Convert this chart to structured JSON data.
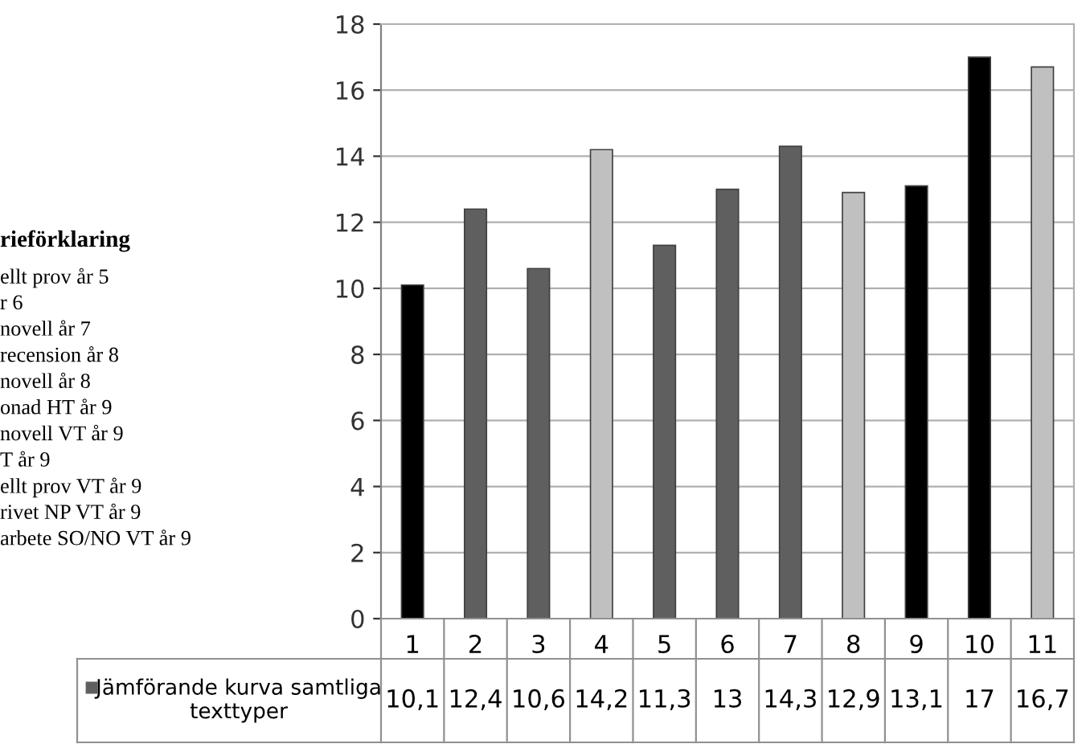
{
  "chart_data": {
    "type": "bar",
    "categories": [
      "1",
      "2",
      "3",
      "4",
      "5",
      "6",
      "7",
      "8",
      "9",
      "10",
      "11"
    ],
    "series": [
      {
        "name": "Jämförande kurva samtliga texttyper",
        "values": [
          10.1,
          12.4,
          10.6,
          14.2,
          11.3,
          13,
          14.3,
          12.9,
          13.1,
          17,
          16.7
        ],
        "colors": [
          "#000000",
          "#5f5f5f",
          "#5f5f5f",
          "#c0c0c0",
          "#5f5f5f",
          "#5f5f5f",
          "#5f5f5f",
          "#c0c0c0",
          "#000000",
          "#000000",
          "#c0c0c0"
        ],
        "value_labels": [
          "10,1",
          "12,4",
          "10,6",
          "14,2",
          "11,3",
          "13",
          "14,3",
          "12,9",
          "13,1",
          "17",
          "16,7"
        ]
      }
    ],
    "ylim": [
      0,
      18
    ],
    "yticks": [
      0,
      2,
      4,
      6,
      8,
      10,
      12,
      14,
      16,
      18
    ],
    "grid": "y",
    "legend": "bottom",
    "annotations": [
      "rieförklaring",
      "ellt prov år 5",
      "r 6",
      "novell år 7",
      "recension år 8",
      "novell år 8",
      "onad HT år 9",
      "novell VT år 9",
      "T år 9",
      "ellt prov VT år 9",
      "rivet NP VT år 9",
      "arbete SO/NO VT år 9"
    ]
  }
}
